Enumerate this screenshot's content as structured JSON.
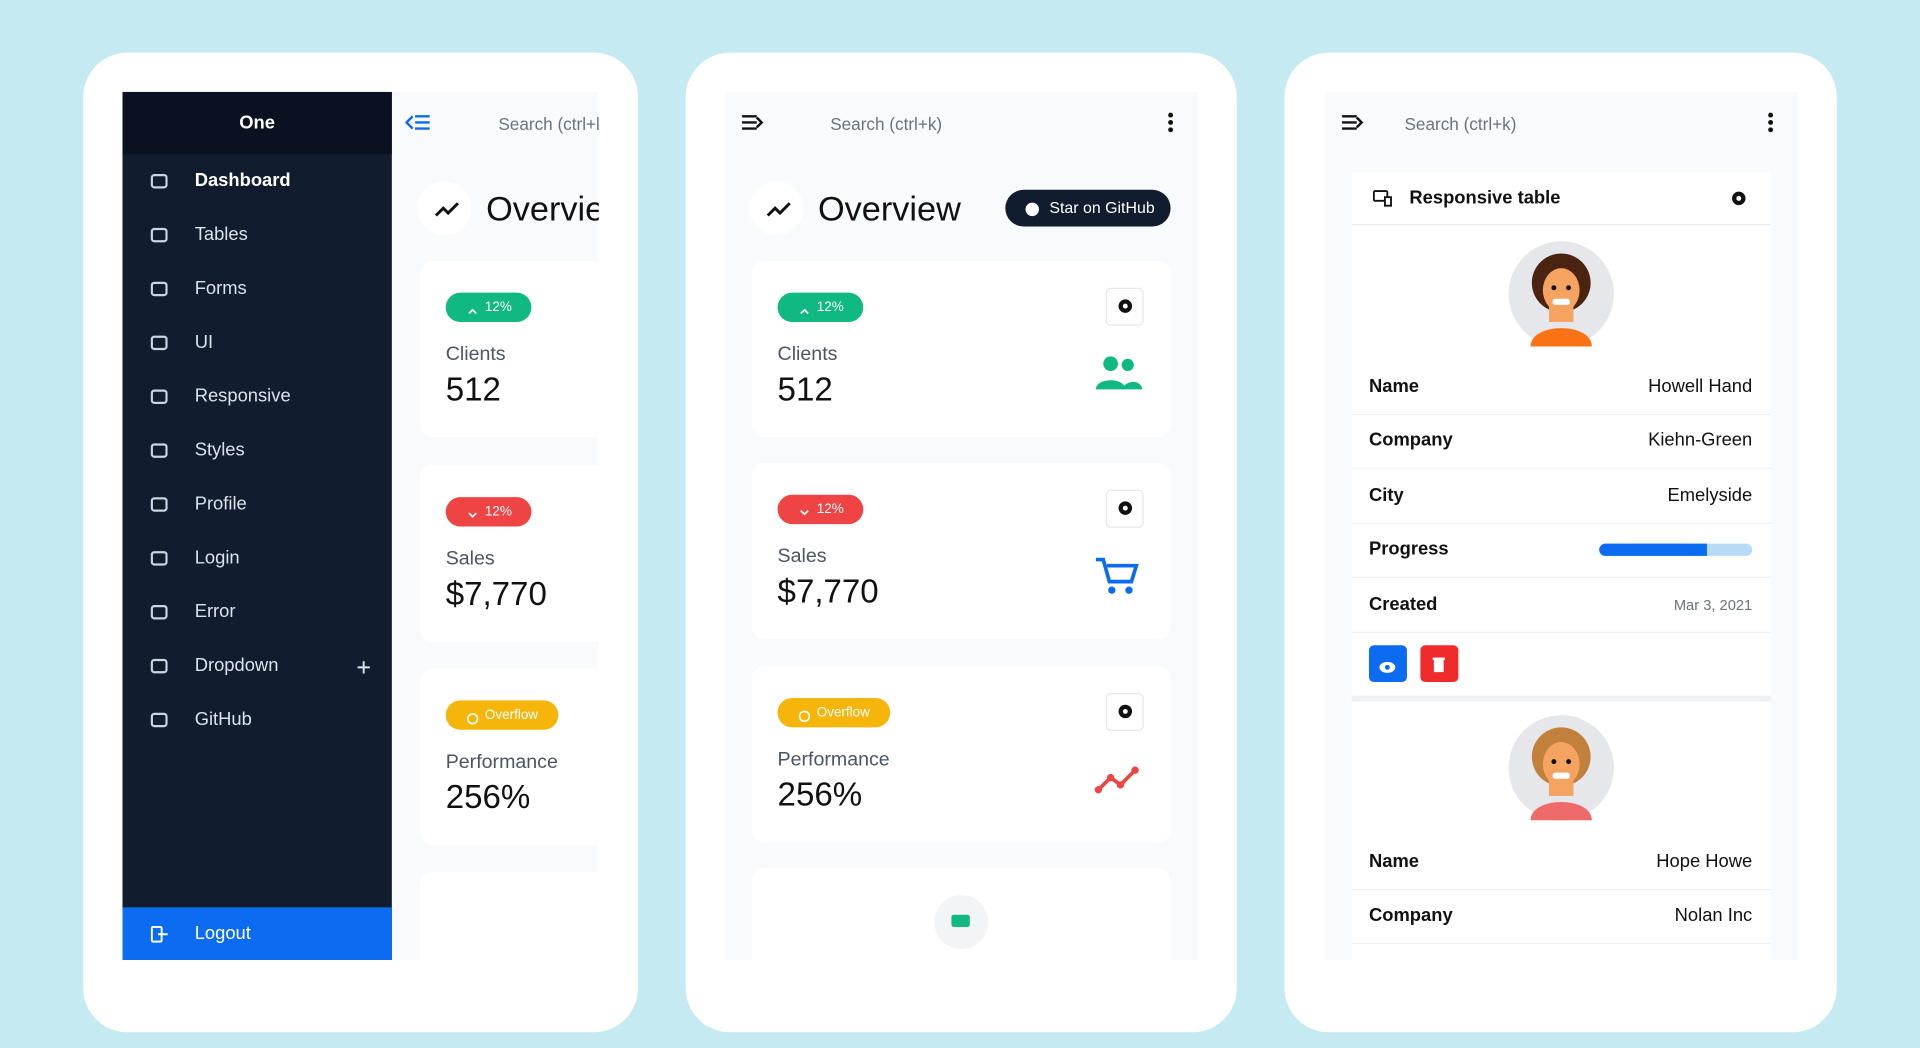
{
  "app_name": "One",
  "sidebar": {
    "items": [
      "Dashboard",
      "Tables",
      "Forms",
      "UI",
      "Responsive",
      "Styles",
      "Profile",
      "Login",
      "Error",
      "Dropdown",
      "GitHub"
    ],
    "logout": "Logout"
  },
  "search_placeholder": "Search (ctrl+k)",
  "overview": {
    "title": "Overview",
    "github_button": "Star on GitHub",
    "cards": [
      {
        "badge": "12%",
        "label": "Clients",
        "value": "512"
      },
      {
        "badge": "12%",
        "label": "Sales",
        "value": "$7,770"
      },
      {
        "badge": "Overflow",
        "label": "Performance",
        "value": "256%"
      }
    ]
  },
  "table": {
    "title": "Responsive table",
    "field_labels": [
      "Name",
      "Company",
      "City",
      "Progress",
      "Created"
    ],
    "rows": [
      {
        "name": "Howell Hand",
        "company": "Kiehn-Green",
        "city": "Emelyside",
        "progress": 70,
        "created": "Mar 3, 2021"
      },
      {
        "name": "Hope Howe",
        "company": "Nolan Inc"
      }
    ]
  }
}
